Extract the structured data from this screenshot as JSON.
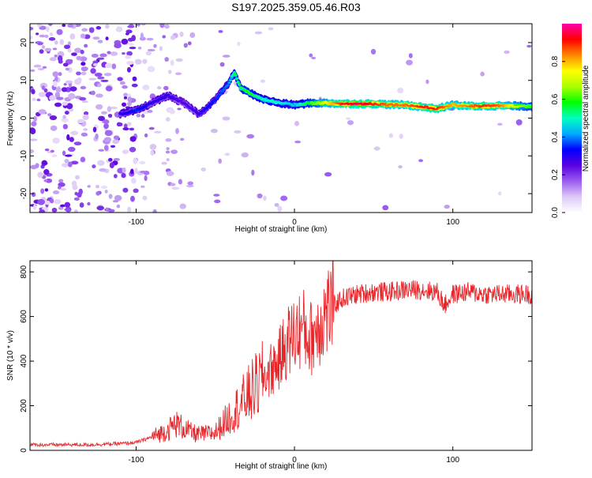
{
  "page_title": "S197.2025.359.05.46.R03",
  "chart_data": [
    {
      "type": "heatmap",
      "title": "S197.2025.359.05.46.R03",
      "xlabel": "Height of straight line (km)",
      "ylabel": "Frequency (Hz)",
      "xlim": [
        -167,
        150
      ],
      "ylim": [
        -25,
        25
      ],
      "xticks": [
        -100,
        0,
        100
      ],
      "xtick_labels": [
        "-100",
        "0",
        "100"
      ],
      "yticks": [
        -20,
        -10,
        0,
        10,
        20
      ],
      "ytick_labels": [
        "-20",
        "-10",
        "0",
        "10",
        "20"
      ],
      "colorbar": {
        "label": "Normalized spectral amplitude",
        "range": [
          0,
          1
        ],
        "ticks": [
          0,
          0.2,
          0.4,
          0.6,
          0.8
        ],
        "tick_labels": [
          "0.0",
          "0.2",
          "0.4",
          "0.6",
          "0.8"
        ],
        "colors": [
          "#ffffff",
          "#dcc8f5",
          "#9a5cf0",
          "#5a00e0",
          "#0000ff",
          "#00aaff",
          "#00ffc0",
          "#00ff00",
          "#aaff00",
          "#ffff00",
          "#ff8800",
          "#ff0000",
          "#ff00aa"
        ]
      },
      "ridge": {
        "x": [
          -110,
          -100,
          -90,
          -80,
          -70,
          -60,
          -50,
          -42,
          -38,
          -34,
          -30,
          -20,
          -10,
          0,
          10,
          20,
          30,
          40,
          50,
          60,
          70,
          80,
          90,
          100,
          110,
          120,
          130,
          140,
          150
        ],
        "y": [
          1,
          2,
          4,
          6,
          4,
          1,
          5,
          9,
          12,
          8,
          7,
          5,
          4,
          3.5,
          4,
          4,
          3.8,
          3.8,
          3.8,
          3.6,
          3.5,
          3,
          2.5,
          3.5,
          3.2,
          3.2,
          3.3,
          3.2,
          3.1
        ],
        "amplitude": [
          0.3,
          0.35,
          0.3,
          0.3,
          0.25,
          0.3,
          0.35,
          0.4,
          0.55,
          0.55,
          0.6,
          0.5,
          0.5,
          0.45,
          0.6,
          0.75,
          0.9,
          0.95,
          0.9,
          0.85,
          0.85,
          0.9,
          0.9,
          0.8,
          0.85,
          0.9,
          0.85,
          0.7,
          0.6
        ]
      }
    },
    {
      "type": "line",
      "xlabel": "Height of straight line (km)",
      "ylabel": "SNR (10 * v/v)",
      "xlim": [
        -167,
        150
      ],
      "ylim": [
        0,
        850
      ],
      "xticks": [
        -100,
        0,
        100
      ],
      "xtick_labels": [
        "-100",
        "0",
        "100"
      ],
      "yticks": [
        0,
        200,
        400,
        600,
        800
      ],
      "ytick_labels": [
        "0",
        "200",
        "400",
        "600",
        "800"
      ],
      "color": "#e8262a",
      "series": [
        {
          "name": "SNR",
          "x": [
            -167,
            -150,
            -130,
            -110,
            -100,
            -90,
            -80,
            -75,
            -70,
            -65,
            -60,
            -50,
            -40,
            -35,
            -30,
            -25,
            -20,
            -15,
            -10,
            -5,
            0,
            5,
            10,
            15,
            20,
            25,
            30,
            40,
            50,
            60,
            70,
            80,
            90,
            95,
            100,
            110,
            120,
            130,
            140,
            150
          ],
          "y": [
            25,
            25,
            25,
            30,
            35,
            60,
            90,
            120,
            100,
            80,
            70,
            80,
            160,
            200,
            240,
            280,
            320,
            360,
            400,
            480,
            520,
            550,
            500,
            560,
            620,
            650,
            680,
            700,
            710,
            710,
            720,
            720,
            710,
            650,
            700,
            710,
            700,
            700,
            700,
            700
          ]
        }
      ]
    }
  ]
}
